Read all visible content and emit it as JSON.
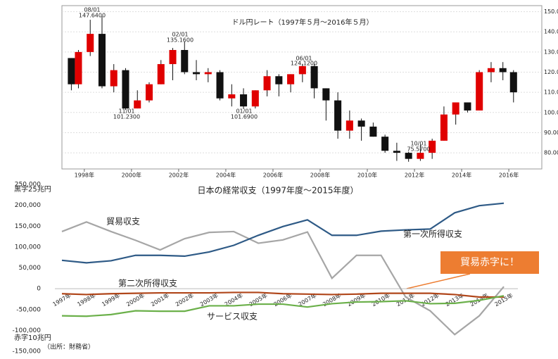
{
  "chart_data": [
    {
      "type": "candlestick",
      "title": "ドル円レート（1997年５月～2016年５月）",
      "x": [
        1997.45,
        1997.75,
        1998.25,
        1998.75,
        1999.25,
        1999.75,
        2000.25,
        2000.75,
        2001.25,
        2001.75,
        2002.25,
        2002.75,
        2003.25,
        2003.75,
        2004.25,
        2004.75,
        2005.25,
        2005.75,
        2006.25,
        2006.75,
        2007.25,
        2007.75,
        2008.25,
        2008.75,
        2009.25,
        2009.75,
        2010.25,
        2010.75,
        2011.25,
        2011.75,
        2012.25,
        2012.75,
        2013.25,
        2013.75,
        2014.25,
        2014.75,
        2015.25,
        2015.75,
        2016.2
      ],
      "open": [
        127,
        114,
        130,
        139,
        113,
        121,
        102,
        106,
        114,
        124,
        131,
        120,
        119,
        120,
        107,
        109,
        103,
        111,
        118,
        114,
        119,
        123,
        112,
        106,
        91,
        96,
        93,
        88,
        81,
        80,
        77,
        80,
        86,
        99,
        105,
        101,
        120,
        122,
        120
      ],
      "high": [
        127,
        131,
        146,
        147.64,
        124,
        122,
        111,
        115,
        126,
        132,
        135.16,
        126,
        122,
        121,
        114,
        112,
        111,
        121,
        119,
        119,
        124.12,
        124,
        112,
        110,
        101,
        97,
        95,
        89,
        85,
        80.5,
        84,
        87,
        103,
        105,
        105,
        121,
        125,
        125,
        121
      ],
      "low": [
        111,
        112,
        128,
        112,
        110,
        101.23,
        102,
        105,
        114,
        116,
        119,
        116,
        115,
        106,
        103,
        101.69,
        102,
        108,
        108,
        110,
        115,
        107,
        96,
        87,
        87,
        86,
        88,
        80,
        76,
        75.57,
        76,
        77,
        86,
        94,
        100,
        101,
        115,
        116,
        105
      ],
      "close": [
        114,
        130,
        139,
        113,
        121,
        102,
        106,
        114,
        124,
        131,
        120,
        119,
        120,
        107,
        109,
        103,
        111,
        118,
        114,
        119,
        123,
        112,
        106,
        91,
        96,
        93,
        88,
        81,
        80,
        77,
        80,
        86,
        99,
        105,
        101,
        120,
        122,
        120,
        110
      ],
      "up_color": "#e00000",
      "down_color": "#111111",
      "xlim": [
        1997.05,
        2017.4
      ],
      "xticks": [
        {
          "value": 1998,
          "label": "1998年"
        },
        {
          "value": 2000,
          "label": "2000年"
        },
        {
          "value": 2002,
          "label": "2002年"
        },
        {
          "value": 2004,
          "label": "2004年"
        },
        {
          "value": 2006,
          "label": "2006年"
        },
        {
          "value": 2008,
          "label": "2008年"
        },
        {
          "value": 2010,
          "label": "2010年"
        },
        {
          "value": 2012,
          "label": "2012年"
        },
        {
          "value": 2014,
          "label": "2014年"
        },
        {
          "value": 2016,
          "label": "2016年"
        }
      ],
      "ylim": [
        72,
        153
      ],
      "yticks": [
        {
          "value": 80,
          "label": "80.00"
        },
        {
          "value": 90,
          "label": "90.00"
        },
        {
          "value": 100,
          "label": "100.00"
        },
        {
          "value": 110,
          "label": "110.00"
        },
        {
          "value": 120,
          "label": "120.00"
        },
        {
          "value": 130,
          "label": "130.00"
        },
        {
          "value": 140,
          "label": "140.00"
        },
        {
          "value": 150,
          "label": "150.00"
        }
      ],
      "grid": true,
      "annotations": [
        {
          "date": "08/01",
          "label": "147.6400"
        },
        {
          "date": "02/01",
          "label": "135.1600"
        },
        {
          "date": "06/01",
          "label": "124.1200"
        },
        {
          "date": "11/01",
          "label": "101.2300"
        },
        {
          "date": "01/01",
          "label": "101.6900"
        },
        {
          "date": "10/01",
          "label": "75.5700"
        }
      ]
    },
    {
      "type": "line",
      "title": "日本の経常収支（1997年度～2015年度）",
      "categories": [
        "1997年",
        "1998年",
        "1999年",
        "2000年",
        "2001年",
        "2002年",
        "2003年",
        "2004年",
        "2005年",
        "2006年",
        "2007年",
        "2008年",
        "2009年",
        "2010年",
        "2011年",
        "2012年",
        "2013年",
        "2014年",
        "2015年"
      ],
      "series": [
        {
          "name": "貿易収支",
          "color": "#a6a6a6",
          "values": [
            137000,
            160000,
            137000,
            116000,
            93000,
            120000,
            135000,
            137000,
            109000,
            117000,
            136000,
            25000,
            80000,
            80000,
            -20000,
            -53000,
            -110000,
            -65000,
            5000
          ]
        },
        {
          "name": "第一次所得収支",
          "color": "#2e5a86",
          "values": [
            68000,
            62000,
            67000,
            80000,
            80000,
            78000,
            88000,
            104000,
            128000,
            149000,
            165000,
            128000,
            128000,
            138000,
            141000,
            143000,
            182000,
            199000,
            205000
          ]
        },
        {
          "name": "第二次所得収支",
          "color": "#b0461a",
          "values": [
            -12000,
            -14000,
            -12000,
            -11000,
            -10000,
            -10000,
            -10000,
            -9000,
            -9000,
            -12000,
            -13000,
            -14000,
            -13000,
            -11000,
            -11000,
            -11000,
            -14000,
            -20000,
            -20000
          ]
        },
        {
          "name": "サービス収支",
          "color": "#6bb04a",
          "values": [
            -65000,
            -66000,
            -62000,
            -53000,
            -54000,
            -54000,
            -41000,
            -41000,
            -37000,
            -37000,
            -44000,
            -36000,
            -32000,
            -31000,
            -29000,
            -36000,
            -35000,
            -28000,
            -17000
          ]
        }
      ],
      "ylim": [
        -150000,
        250000
      ],
      "yticks": [
        {
          "value": -150000,
          "label": "-150,000"
        },
        {
          "value": -100000,
          "label": "-100,000"
        },
        {
          "value": -50000,
          "label": "-50,000"
        },
        0,
        {
          "value": 50000,
          "label": "50,000"
        },
        {
          "value": 100000,
          "label": "100,000"
        },
        {
          "value": 150000,
          "label": "150,000"
        },
        {
          "value": 200000,
          "label": "200,000"
        },
        {
          "value": 250000,
          "label": "250,000"
        }
      ],
      "surplus_label": "黒字25兆円",
      "deficit_label": "赤字10兆円",
      "source": "（出所：財務省）",
      "callout": "貿易赤字に！"
    }
  ]
}
